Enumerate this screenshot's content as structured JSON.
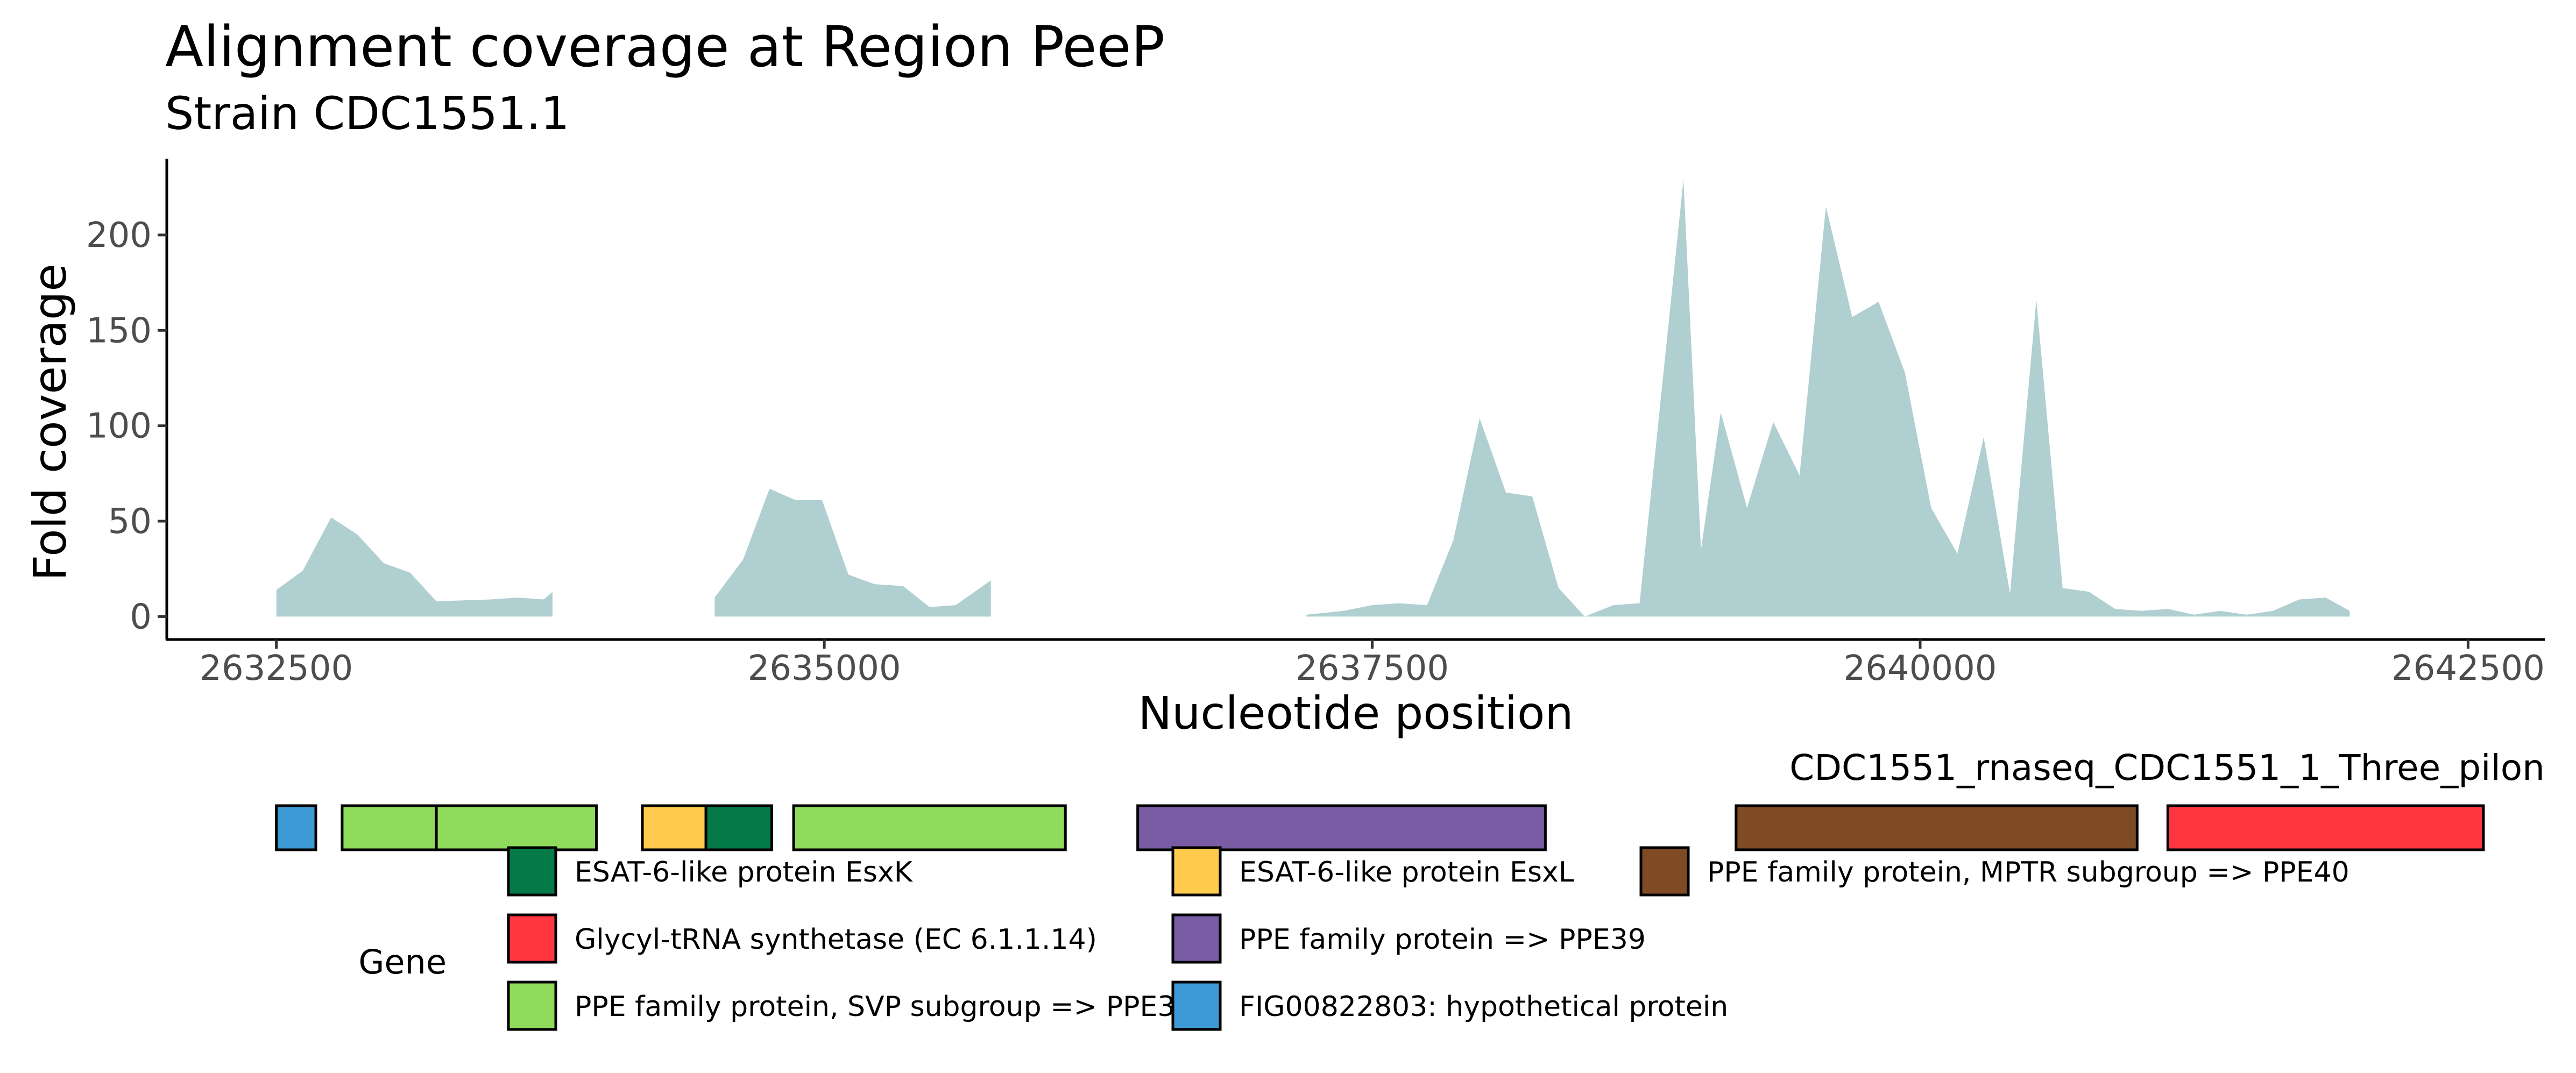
{
  "chart_data": {
    "type": "area",
    "title": "Alignment coverage at Region PeeP",
    "subtitle": "Strain CDC1551.1",
    "xlabel": "Nucleotide position",
    "ylabel": "Fold coverage",
    "xlim": [
      2632000,
      2642850
    ],
    "ylim": [
      -12,
      240
    ],
    "x_ticks": [
      2632500,
      2635000,
      2637500,
      2640000,
      2642500
    ],
    "x_tick_labels": [
      "2632500",
      "2635000",
      "2637500",
      "2640000",
      "2642500"
    ],
    "y_ticks": [
      0,
      50,
      100,
      150,
      200
    ],
    "y_tick_labels": [
      "0",
      "50",
      "100",
      "150",
      "200"
    ],
    "grid": false,
    "area_color": "#b0cfd1",
    "segments": [
      [
        [
          2632500,
          14
        ],
        [
          2632620,
          24
        ],
        [
          2632750,
          52
        ],
        [
          2632870,
          43
        ],
        [
          2632990,
          28
        ],
        [
          2633110,
          23
        ],
        [
          2633230,
          8
        ],
        [
          2633480,
          9
        ],
        [
          2633600,
          10
        ],
        [
          2633720,
          9
        ],
        [
          2633760,
          13
        ]
      ],
      [
        [
          2634500,
          10
        ],
        [
          2634630,
          30
        ],
        [
          2634750,
          67
        ],
        [
          2634870,
          61
        ],
        [
          2634990,
          61
        ],
        [
          2635110,
          22
        ],
        [
          2635230,
          17
        ],
        [
          2635360,
          16
        ],
        [
          2635480,
          5
        ],
        [
          2635600,
          6
        ],
        [
          2635760,
          19
        ]
      ],
      [
        [
          2637200,
          1
        ],
        [
          2637370,
          3
        ],
        [
          2637500,
          6
        ],
        [
          2637620,
          7
        ],
        [
          2637750,
          6
        ],
        [
          2637870,
          40
        ],
        [
          2637990,
          104
        ],
        [
          2638110,
          65
        ],
        [
          2638230,
          63
        ],
        [
          2638350,
          15
        ],
        [
          2638470,
          0
        ],
        [
          2638600,
          6
        ],
        [
          2638720,
          7
        ],
        [
          2638840,
          140
        ],
        [
          2638920,
          229
        ],
        [
          2639000,
          35
        ],
        [
          2639090,
          107
        ],
        [
          2639210,
          57
        ],
        [
          2639330,
          102
        ],
        [
          2639450,
          74
        ],
        [
          2639570,
          215
        ],
        [
          2639690,
          157
        ],
        [
          2639810,
          165
        ],
        [
          2639930,
          128
        ],
        [
          2640050,
          57
        ],
        [
          2640170,
          33
        ],
        [
          2640290,
          94
        ],
        [
          2640410,
          12
        ],
        [
          2640530,
          166
        ],
        [
          2640650,
          15
        ],
        [
          2640770,
          13
        ],
        [
          2640890,
          4
        ],
        [
          2641010,
          3
        ],
        [
          2641130,
          4
        ],
        [
          2641250,
          1
        ],
        [
          2641370,
          3
        ],
        [
          2641490,
          1
        ],
        [
          2641610,
          3
        ],
        [
          2641730,
          9
        ],
        [
          2641850,
          10
        ],
        [
          2641960,
          3
        ]
      ]
    ],
    "gene_track": {
      "label": "CDC1551_rnaseq_CDC1551_1_Three_pilon",
      "genes": [
        {
          "start": 2632500,
          "end": 2632680,
          "category": "FIG00822803: hypothetical protein"
        },
        {
          "start": 2632800,
          "end": 2633230,
          "category": "PPE family protein, SVP subgroup => PPE38"
        },
        {
          "start": 2633230,
          "end": 2633960,
          "category": "PPE family protein, SVP subgroup => PPE38"
        },
        {
          "start": 2634170,
          "end": 2634460,
          "category": "ESAT-6-like protein EsxL"
        },
        {
          "start": 2634460,
          "end": 2634760,
          "category": "ESAT-6-like protein EsxK"
        },
        {
          "start": 2634860,
          "end": 2636100,
          "category": "PPE family protein, SVP subgroup => PPE38"
        },
        {
          "start": 2636430,
          "end": 2638290,
          "category": "PPE family protein => PPE39"
        },
        {
          "start": 2639160,
          "end": 2640990,
          "category": "PPE family protein, MPTR subgroup => PPE40"
        },
        {
          "start": 2641130,
          "end": 2642570,
          "category": "Glycyl-tRNA synthetase (EC 6.1.1.14)"
        }
      ]
    },
    "legend": {
      "title": "Gene",
      "placement": "bottom",
      "entries": [
        {
          "label": "ESAT-6-like protein EsxK",
          "color": "#037a48"
        },
        {
          "label": "Glycyl-tRNA synthetase (EC 6.1.1.14)",
          "color": "#fe3640"
        },
        {
          "label": "PPE family protein, SVP subgroup => PPE38",
          "color": "#8fdb5b"
        },
        {
          "label": "ESAT-6-like protein EsxL",
          "color": "#fecb4f"
        },
        {
          "label": "PPE family protein => PPE39",
          "color": "#7a5ca4"
        },
        {
          "label": "FIG00822803: hypothetical protein",
          "color": "#3d9ad4"
        },
        {
          "label": "PPE family protein, MPTR subgroup => PPE40",
          "color": "#7f4b24"
        }
      ]
    }
  }
}
